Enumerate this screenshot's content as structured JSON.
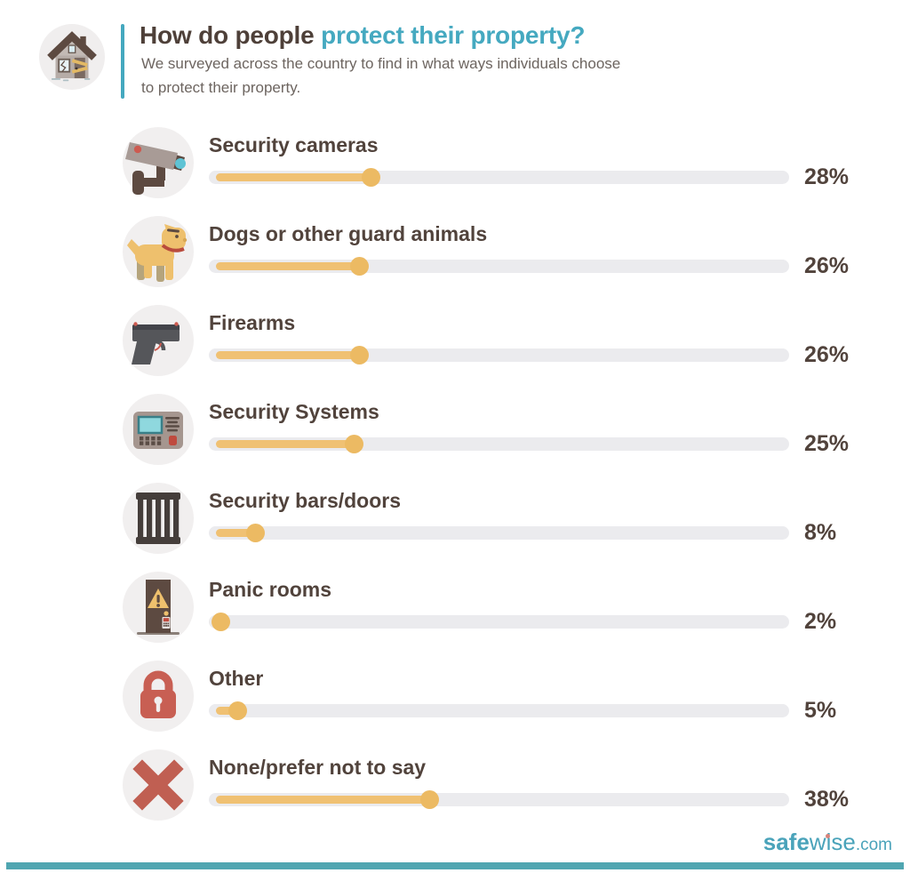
{
  "header": {
    "title_dark": "How do people",
    "title_accent": "protect their property?",
    "subtitle": "We surveyed across the country to find in what ways individuals choose to protect their property."
  },
  "chart_data": {
    "type": "bar",
    "orientation": "horizontal",
    "bar_style": "slider",
    "title": "How do people protect their property?",
    "unit": "percent",
    "xlim": [
      0,
      100
    ],
    "grid": false,
    "legend": false,
    "categories": [
      "Security cameras",
      "Dogs or other guard animals",
      "Firearms",
      "Security Systems",
      "Security bars/doors",
      "Panic rooms",
      "Other",
      "None/prefer not to say"
    ],
    "values": [
      28,
      26,
      26,
      25,
      8,
      2,
      5,
      38
    ],
    "pct_labels": [
      "28%",
      "26%",
      "26%",
      "25%",
      "8%",
      "2%",
      "5%",
      "38%"
    ],
    "icons": [
      "security-camera-icon",
      "guard-dog-icon",
      "firearm-icon",
      "security-system-keypad-icon",
      "security-bars-icon",
      "panic-room-door-icon",
      "padlock-icon",
      "x-mark-icon"
    ]
  },
  "footer": {
    "logo": {
      "bold": "safe",
      "light": "wise",
      "suffix": ".com"
    }
  },
  "colors": {
    "heading_brown": "#4e4039",
    "accent_teal": "#45a9c0",
    "subtitle_gray": "#6d6560",
    "label_brown": "#51433c",
    "slider_track": "#ebebee",
    "slider_fill": "#f0c173",
    "slider_knob": "#ecba63",
    "icon_circle_bg": "#f1efef",
    "footer_bar_teal": "#4fa6b1",
    "logo_teal": "#4aa3ba"
  }
}
